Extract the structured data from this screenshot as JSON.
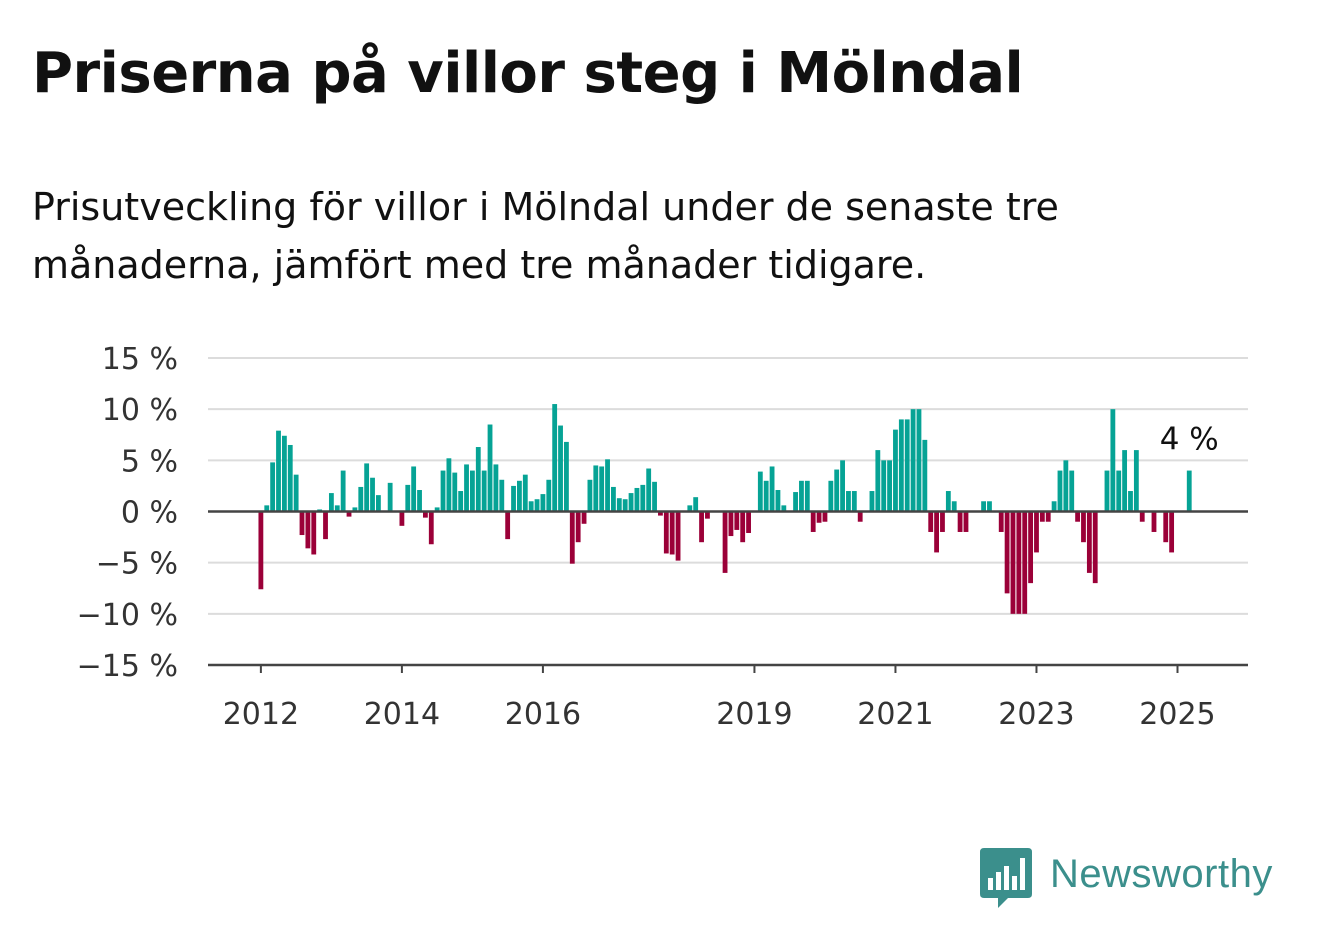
{
  "title": "Priserna på villor steg i Mölndal",
  "subtitle": "Prisutveckling för villor i Mölndal under de senaste tre månaderna, jämfört med tre månader tidigare.",
  "brand": {
    "name": "Newsworthy",
    "color": "#3b8f8c",
    "icon": "bar-chart-speech-bubble-icon"
  },
  "chart_data": {
    "type": "bar",
    "series_name": "",
    "y_unit": "%",
    "ylim": [
      -15,
      15
    ],
    "y_ticks": [
      15,
      10,
      5,
      0,
      -5,
      -10,
      -15
    ],
    "y_tick_labels": [
      "15 %",
      "10 %",
      "5 %",
      "0 %",
      "−5 %",
      "−10 %",
      "−15 %"
    ],
    "x_range": [
      "2011-04",
      "2026-01"
    ],
    "x_ticks": [
      "2012",
      "2014",
      "2016",
      "2019",
      "2021",
      "2023",
      "2025"
    ],
    "grid": true,
    "colors": {
      "positive": "#06a395",
      "negative": "#9b0038"
    },
    "annotation": {
      "text": "4 %",
      "date": "2025-03"
    },
    "bars": [
      {
        "date": "2012-01",
        "value": -7.6
      },
      {
        "date": "2012-02",
        "value": 0.6
      },
      {
        "date": "2012-03",
        "value": 4.8
      },
      {
        "date": "2012-04",
        "value": 7.9
      },
      {
        "date": "2012-05",
        "value": 7.4
      },
      {
        "date": "2012-06",
        "value": 6.5
      },
      {
        "date": "2012-07",
        "value": 3.6
      },
      {
        "date": "2012-08",
        "value": -2.3
      },
      {
        "date": "2012-09",
        "value": -3.6
      },
      {
        "date": "2012-10",
        "value": -4.2
      },
      {
        "date": "2012-11",
        "value": 0.2
      },
      {
        "date": "2012-12",
        "value": -2.7
      },
      {
        "date": "2013-01",
        "value": 1.8
      },
      {
        "date": "2013-02",
        "value": 0.6
      },
      {
        "date": "2013-03",
        "value": 4.0
      },
      {
        "date": "2013-04",
        "value": -0.5
      },
      {
        "date": "2013-05",
        "value": 0.4
      },
      {
        "date": "2013-06",
        "value": 2.4
      },
      {
        "date": "2013-07",
        "value": 4.7
      },
      {
        "date": "2013-08",
        "value": 3.3
      },
      {
        "date": "2013-09",
        "value": 1.6
      },
      {
        "date": "2013-11",
        "value": 2.8
      },
      {
        "date": "2014-01",
        "value": -1.4
      },
      {
        "date": "2014-02",
        "value": 2.6
      },
      {
        "date": "2014-03",
        "value": 4.4
      },
      {
        "date": "2014-04",
        "value": 2.1
      },
      {
        "date": "2014-05",
        "value": -0.6
      },
      {
        "date": "2014-06",
        "value": -3.2
      },
      {
        "date": "2014-07",
        "value": 0.4
      },
      {
        "date": "2014-08",
        "value": 4.0
      },
      {
        "date": "2014-09",
        "value": 5.2
      },
      {
        "date": "2014-10",
        "value": 3.8
      },
      {
        "date": "2014-11",
        "value": 2.0
      },
      {
        "date": "2014-12",
        "value": 4.6
      },
      {
        "date": "2015-01",
        "value": 4.0
      },
      {
        "date": "2015-02",
        "value": 6.3
      },
      {
        "date": "2015-03",
        "value": 4.0
      },
      {
        "date": "2015-04",
        "value": 8.5
      },
      {
        "date": "2015-05",
        "value": 4.6
      },
      {
        "date": "2015-06",
        "value": 3.1
      },
      {
        "date": "2015-07",
        "value": -2.7
      },
      {
        "date": "2015-08",
        "value": 2.5
      },
      {
        "date": "2015-09",
        "value": 3.0
      },
      {
        "date": "2015-10",
        "value": 3.6
      },
      {
        "date": "2015-11",
        "value": 1.0
      },
      {
        "date": "2015-12",
        "value": 1.2
      },
      {
        "date": "2016-01",
        "value": 1.7
      },
      {
        "date": "2016-02",
        "value": 3.1
      },
      {
        "date": "2016-03",
        "value": 10.5
      },
      {
        "date": "2016-04",
        "value": 8.4
      },
      {
        "date": "2016-05",
        "value": 6.8
      },
      {
        "date": "2016-06",
        "value": -5.1
      },
      {
        "date": "2016-07",
        "value": -3.0
      },
      {
        "date": "2016-08",
        "value": -1.2
      },
      {
        "date": "2016-09",
        "value": 3.1
      },
      {
        "date": "2016-10",
        "value": 4.5
      },
      {
        "date": "2016-11",
        "value": 4.4
      },
      {
        "date": "2016-12",
        "value": 5.1
      },
      {
        "date": "2017-01",
        "value": 2.4
      },
      {
        "date": "2017-02",
        "value": 1.3
      },
      {
        "date": "2017-03",
        "value": 1.2
      },
      {
        "date": "2017-04",
        "value": 1.8
      },
      {
        "date": "2017-05",
        "value": 2.3
      },
      {
        "date": "2017-06",
        "value": 2.6
      },
      {
        "date": "2017-07",
        "value": 4.2
      },
      {
        "date": "2017-08",
        "value": 2.9
      },
      {
        "date": "2017-09",
        "value": -0.4
      },
      {
        "date": "2017-10",
        "value": -4.1
      },
      {
        "date": "2017-11",
        "value": -4.2
      },
      {
        "date": "2017-12",
        "value": -4.8
      },
      {
        "date": "2018-02",
        "value": 0.6
      },
      {
        "date": "2018-03",
        "value": 1.4
      },
      {
        "date": "2018-04",
        "value": -3.0
      },
      {
        "date": "2018-05",
        "value": -0.7
      },
      {
        "date": "2018-08",
        "value": -6.0
      },
      {
        "date": "2018-09",
        "value": -2.4
      },
      {
        "date": "2018-10",
        "value": -1.8
      },
      {
        "date": "2018-11",
        "value": -3.0
      },
      {
        "date": "2018-12",
        "value": -2.1
      },
      {
        "date": "2019-02",
        "value": 3.9
      },
      {
        "date": "2019-03",
        "value": 3.0
      },
      {
        "date": "2019-04",
        "value": 4.4
      },
      {
        "date": "2019-05",
        "value": 2.1
      },
      {
        "date": "2019-06",
        "value": 0.6
      },
      {
        "date": "2019-08",
        "value": 1.9
      },
      {
        "date": "2019-09",
        "value": 3.0
      },
      {
        "date": "2019-10",
        "value": 3.0
      },
      {
        "date": "2019-11",
        "value": -2.0
      },
      {
        "date": "2019-12",
        "value": -1.1
      },
      {
        "date": "2020-01",
        "value": -1.0
      },
      {
        "date": "2020-02",
        "value": 3.0
      },
      {
        "date": "2020-03",
        "value": 4.1
      },
      {
        "date": "2020-04",
        "value": 5.0
      },
      {
        "date": "2020-05",
        "value": 2.0
      },
      {
        "date": "2020-06",
        "value": 2.0
      },
      {
        "date": "2020-07",
        "value": -1.0
      },
      {
        "date": "2020-09",
        "value": 2.0
      },
      {
        "date": "2020-10",
        "value": 6.0
      },
      {
        "date": "2020-11",
        "value": 5.0
      },
      {
        "date": "2020-12",
        "value": 5.0
      },
      {
        "date": "2021-01",
        "value": 8.0
      },
      {
        "date": "2021-02",
        "value": 9.0
      },
      {
        "date": "2021-03",
        "value": 9.0
      },
      {
        "date": "2021-04",
        "value": 10.0
      },
      {
        "date": "2021-05",
        "value": 10.0
      },
      {
        "date": "2021-06",
        "value": 7.0
      },
      {
        "date": "2021-07",
        "value": -2.0
      },
      {
        "date": "2021-08",
        "value": -4.0
      },
      {
        "date": "2021-09",
        "value": -2.0
      },
      {
        "date": "2021-10",
        "value": 2.0
      },
      {
        "date": "2021-11",
        "value": 1.0
      },
      {
        "date": "2021-12",
        "value": -2.0
      },
      {
        "date": "2022-01",
        "value": -2.0
      },
      {
        "date": "2022-04",
        "value": 1.0
      },
      {
        "date": "2022-05",
        "value": 1.0
      },
      {
        "date": "2022-07",
        "value": -2.0
      },
      {
        "date": "2022-08",
        "value": -8.0
      },
      {
        "date": "2022-09",
        "value": -10.0
      },
      {
        "date": "2022-10",
        "value": -10.0
      },
      {
        "date": "2022-11",
        "value": -10.0
      },
      {
        "date": "2022-12",
        "value": -7.0
      },
      {
        "date": "2023-01",
        "value": -4.0
      },
      {
        "date": "2023-02",
        "value": -1.0
      },
      {
        "date": "2023-03",
        "value": -1.0
      },
      {
        "date": "2023-04",
        "value": 1.0
      },
      {
        "date": "2023-05",
        "value": 4.0
      },
      {
        "date": "2023-06",
        "value": 5.0
      },
      {
        "date": "2023-07",
        "value": 4.0
      },
      {
        "date": "2023-08",
        "value": -1.0
      },
      {
        "date": "2023-09",
        "value": -3.0
      },
      {
        "date": "2023-10",
        "value": -6.0
      },
      {
        "date": "2023-11",
        "value": -7.0
      },
      {
        "date": "2024-01",
        "value": 4.0
      },
      {
        "date": "2024-02",
        "value": 10.0
      },
      {
        "date": "2024-03",
        "value": 4.0
      },
      {
        "date": "2024-04",
        "value": 6.0
      },
      {
        "date": "2024-05",
        "value": 2.0
      },
      {
        "date": "2024-06",
        "value": 6.0
      },
      {
        "date": "2024-07",
        "value": -1.0
      },
      {
        "date": "2024-09",
        "value": -2.0
      },
      {
        "date": "2024-11",
        "value": -3.0
      },
      {
        "date": "2024-12",
        "value": -4.0
      },
      {
        "date": "2025-03",
        "value": 4.0
      }
    ]
  }
}
